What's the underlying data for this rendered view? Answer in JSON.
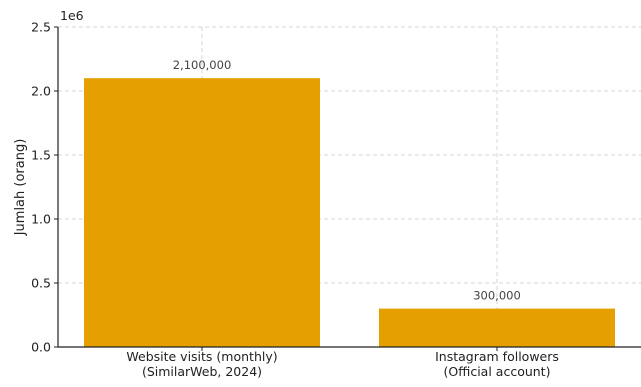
{
  "chart_data": {
    "type": "bar",
    "categories": [
      [
        "Website visits (monthly)",
        "(SimilarWeb, 2024)"
      ],
      [
        "Instagram followers",
        "(Official account)"
      ]
    ],
    "values": [
      2100000,
      300000
    ],
    "value_labels": [
      "2,100,000",
      "300,000"
    ],
    "title": "",
    "xlabel": "",
    "ylabel": "Jumlah (orang)",
    "ylim": [
      0,
      2500000
    ],
    "y_ticks": [
      0,
      500000,
      1000000,
      1500000,
      2000000,
      2500000
    ],
    "y_tick_labels": [
      "0.0",
      "0.5",
      "1.0",
      "1.5",
      "2.0",
      "2.5"
    ],
    "y_offset_label": "1e6",
    "grid": true,
    "bar_color": "#E69F00"
  }
}
